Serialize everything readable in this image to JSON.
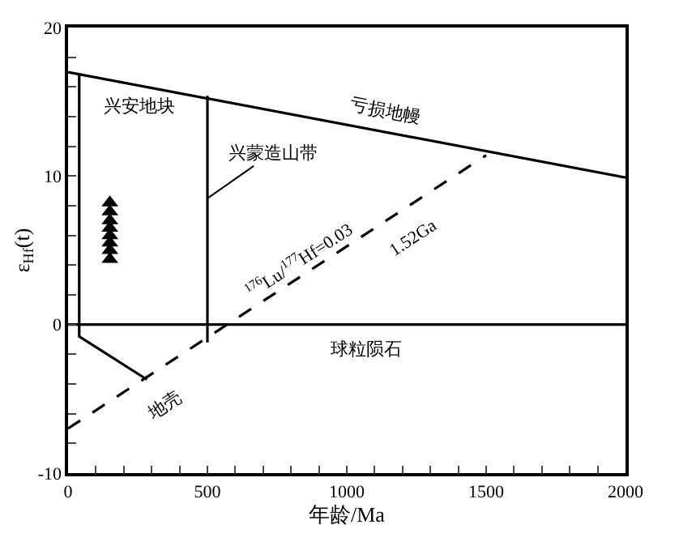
{
  "chart_data": {
    "type": "line",
    "xlabel": "年龄/Ma",
    "ylabel": "ε$_{Hf}$(t)",
    "xlim": [
      0,
      2000
    ],
    "ylim": [
      -10,
      20
    ],
    "xticks": [
      0,
      {
        "value": 100,
        "label": null
      },
      {
        "value": 200,
        "label": null
      },
      {
        "value": 300,
        "label": null
      },
      {
        "value": 400,
        "label": null
      },
      500,
      {
        "value": 600,
        "label": null
      },
      {
        "value": 700,
        "label": null
      },
      {
        "value": 800,
        "label": null
      },
      {
        "value": 900,
        "label": null
      },
      1000,
      {
        "value": 1100,
        "label": null
      },
      {
        "value": 1200,
        "label": null
      },
      {
        "value": 1300,
        "label": null
      },
      {
        "value": 1400,
        "label": null
      },
      1500,
      {
        "value": 1600,
        "label": null
      },
      {
        "value": 1700,
        "label": null
      },
      {
        "value": 1800,
        "label": null
      },
      {
        "value": 1900,
        "label": null
      },
      2000
    ],
    "yticks": [
      -10,
      {
        "value": -8,
        "label": null
      },
      {
        "value": -6,
        "label": null
      },
      {
        "value": -4,
        "label": null
      },
      {
        "value": -2,
        "label": null
      },
      0,
      {
        "value": 2,
        "label": null
      },
      {
        "value": 4,
        "label": null
      },
      {
        "value": 6,
        "label": null
      },
      {
        "value": 8,
        "label": null
      },
      10,
      {
        "value": 12,
        "label": null
      },
      {
        "value": 14,
        "label": null
      },
      {
        "value": 16,
        "label": null
      },
      {
        "value": 18,
        "label": null
      },
      20
    ],
    "series": [
      {
        "color": "#000000",
        "line_style": "solid",
        "x": [
          0,
          2000
        ],
        "values": [
          17,
          9.9
        ]
      },
      {
        "color": "#000000",
        "line_style": "dashed",
        "x": [
          0,
          1500
        ],
        "values": [
          -7,
          11.4
        ]
      },
      {
        "color": "#000000",
        "line_style": "solid",
        "x": [
          0,
          2000
        ],
        "values": [
          0,
          0
        ]
      },
      {
        "color": "#000000",
        "line_style": "solid",
        "x": [
          40,
          40,
          283
        ],
        "values": [
          16.8,
          -0.8,
          -3.7
        ]
      },
      {
        "color": "#000000",
        "line_style": "solid",
        "x": [
          500,
          500
        ],
        "values": [
          15.4,
          -1.2
        ]
      },
      {
        "type": "scatter",
        "color": "#000000",
        "marker": "triangle",
        "x": [
          150,
          150,
          150,
          150,
          150,
          150,
          150,
          150
        ],
        "values": [
          4.4,
          5.0,
          5.5,
          6.0,
          6.5,
          7.0,
          7.6,
          8.2
        ]
      }
    ],
    "annotations": [
      "兴安地块",
      {
        "text": "兴蒙造山带",
        "x": 500,
        "y": 8.5
      },
      "亏损地幔",
      "$^{176}$Lu/$^{177}$Hf=0.03",
      "1.52Ga",
      "地壳",
      "球粒陨石"
    ]
  }
}
